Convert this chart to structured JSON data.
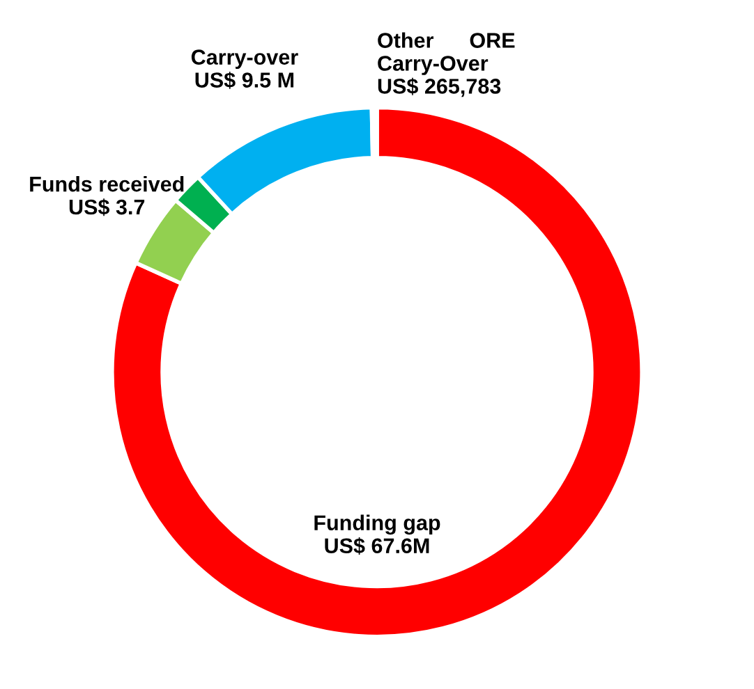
{
  "chart_data": {
    "type": "donut",
    "categories": [
      "Funding gap",
      "Funds received",
      null,
      "Carry-over",
      "Other      ORE Carry-Over"
    ],
    "values": [
      67.6,
      3.7,
      1.6,
      9.5,
      0.265783
    ],
    "value_labels": [
      "US$ 67.6M",
      "US$ 3.7",
      null,
      "US$ 9.5 M",
      "US$ 265,783"
    ],
    "colors": [
      "#ff0000",
      "#92d050",
      "#00b050",
      "#00b0f0",
      "#ffffff"
    ],
    "legend": false
  }
}
